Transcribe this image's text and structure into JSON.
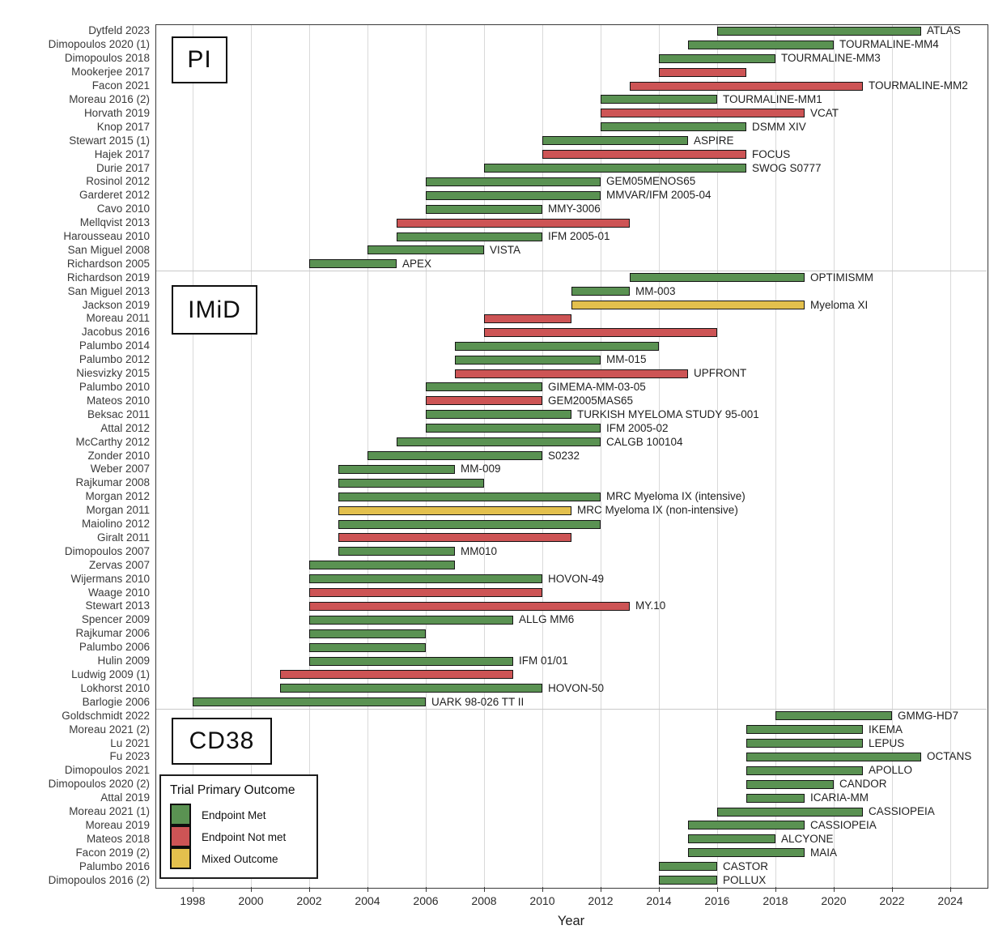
{
  "chart_data": {
    "type": "bar",
    "variant": "gantt-timeline",
    "xlabel": "Year",
    "x_ticks": [
      1998,
      2000,
      2002,
      2004,
      2006,
      2008,
      2010,
      2012,
      2014,
      2016,
      2018,
      2020,
      2022,
      2024
    ],
    "x_range": [
      1996.7,
      2025.3
    ],
    "grid": "vertical-on",
    "legend": {
      "title": "Trial Primary Outcome",
      "position": "bottom-left-inside",
      "items": [
        {
          "key": "met",
          "label": "Endpoint Met",
          "color": "#5A9252"
        },
        {
          "key": "not_met",
          "label": "Endpoint Not met",
          "color": "#CD5455"
        },
        {
          "key": "mixed",
          "label": "Mixed Outcome",
          "color": "#E3C04D"
        }
      ]
    },
    "outcome_colors": {
      "met": "#5A9252",
      "not_met": "#CD5455",
      "mixed": "#E3C04D"
    },
    "sections": [
      {
        "label": "PI",
        "rows": [
          {
            "study": "Dytfeld 2023",
            "trial": "ATLAS",
            "start": 2016,
            "end": 2023,
            "outcome": "met"
          },
          {
            "study": "Dimopoulos 2020 (1)",
            "trial": "TOURMALINE-MM4",
            "start": 2015,
            "end": 2020,
            "outcome": "met"
          },
          {
            "study": "Dimopoulos 2018",
            "trial": "TOURMALINE-MM3",
            "start": 2014,
            "end": 2018,
            "outcome": "met"
          },
          {
            "study": "Mookerjee 2017",
            "trial": "",
            "start": 2014,
            "end": 2017,
            "outcome": "not_met"
          },
          {
            "study": "Facon 2021",
            "trial": "TOURMALINE-MM2",
            "start": 2013,
            "end": 2021,
            "outcome": "not_met"
          },
          {
            "study": "Moreau 2016 (2)",
            "trial": "TOURMALINE-MM1",
            "start": 2012,
            "end": 2016,
            "outcome": "met"
          },
          {
            "study": "Horvath 2019",
            "trial": "VCAT",
            "start": 2012,
            "end": 2019,
            "outcome": "not_met"
          },
          {
            "study": "Knop 2017",
            "trial": "DSMM XIV",
            "start": 2012,
            "end": 2017,
            "outcome": "met"
          },
          {
            "study": "Stewart 2015 (1)",
            "trial": "ASPIRE",
            "start": 2010,
            "end": 2015,
            "outcome": "met"
          },
          {
            "study": "Hajek 2017",
            "trial": "FOCUS",
            "start": 2010,
            "end": 2017,
            "outcome": "not_met"
          },
          {
            "study": "Durie 2017",
            "trial": "SWOG S0777",
            "start": 2008,
            "end": 2017,
            "outcome": "met"
          },
          {
            "study": "Rosinol 2012",
            "trial": "GEM05MENOS65",
            "start": 2006,
            "end": 2012,
            "outcome": "met"
          },
          {
            "study": "Garderet 2012",
            "trial": "MMVAR/IFM 2005-04",
            "start": 2006,
            "end": 2012,
            "outcome": "met"
          },
          {
            "study": "Cavo 2010",
            "trial": "MMY-3006",
            "start": 2006,
            "end": 2010,
            "outcome": "met"
          },
          {
            "study": "Mellqvist 2013",
            "trial": "",
            "start": 2005,
            "end": 2013,
            "outcome": "not_met"
          },
          {
            "study": "Harousseau 2010",
            "trial": "IFM 2005-01",
            "start": 2005,
            "end": 2010,
            "outcome": "met"
          },
          {
            "study": "San Miguel 2008",
            "trial": "VISTA",
            "start": 2004,
            "end": 2008,
            "outcome": "met"
          },
          {
            "study": "Richardson 2005",
            "trial": "APEX",
            "start": 2002,
            "end": 2005,
            "outcome": "met"
          }
        ]
      },
      {
        "label": "IMiD",
        "rows": [
          {
            "study": "Richardson 2019",
            "trial": "OPTIMISMM",
            "start": 2013,
            "end": 2019,
            "outcome": "met"
          },
          {
            "study": "San Miguel 2013",
            "trial": "MM-003",
            "start": 2011,
            "end": 2013,
            "outcome": "met"
          },
          {
            "study": "Jackson 2019",
            "trial": "Myeloma XI",
            "start": 2011,
            "end": 2019,
            "outcome": "mixed"
          },
          {
            "study": "Moreau 2011",
            "trial": "",
            "start": 2008,
            "end": 2011,
            "outcome": "not_met"
          },
          {
            "study": "Jacobus 2016",
            "trial": "",
            "start": 2008,
            "end": 2016,
            "outcome": "not_met"
          },
          {
            "study": "Palumbo 2014",
            "trial": "",
            "start": 2007,
            "end": 2014,
            "outcome": "met"
          },
          {
            "study": "Palumbo 2012",
            "trial": "MM-015",
            "start": 2007,
            "end": 2012,
            "outcome": "met"
          },
          {
            "study": "Niesvizky 2015",
            "trial": "UPFRONT",
            "start": 2007,
            "end": 2015,
            "outcome": "not_met"
          },
          {
            "study": "Palumbo 2010",
            "trial": "GIMEMA-MM-03-05",
            "start": 2006,
            "end": 2010,
            "outcome": "met"
          },
          {
            "study": "Mateos 2010",
            "trial": "GEM2005MAS65",
            "start": 2006,
            "end": 2010,
            "outcome": "not_met"
          },
          {
            "study": "Beksac 2011",
            "trial": "TURKISH MYELOMA STUDY 95-001",
            "start": 2006,
            "end": 2011,
            "outcome": "met"
          },
          {
            "study": "Attal 2012",
            "trial": "IFM 2005-02",
            "start": 2006,
            "end": 2012,
            "outcome": "met"
          },
          {
            "study": "McCarthy 2012",
            "trial": "CALGB 100104",
            "start": 2005,
            "end": 2012,
            "outcome": "met"
          },
          {
            "study": "Zonder 2010",
            "trial": "S0232",
            "start": 2004,
            "end": 2010,
            "outcome": "met"
          },
          {
            "study": "Weber 2007",
            "trial": "MM-009",
            "start": 2003,
            "end": 2007,
            "outcome": "met"
          },
          {
            "study": "Rajkumar 2008",
            "trial": "",
            "start": 2003,
            "end": 2008,
            "outcome": "met"
          },
          {
            "study": "Morgan 2012",
            "trial": "MRC Myeloma IX (intensive)",
            "start": 2003,
            "end": 2012,
            "outcome": "met"
          },
          {
            "study": "Morgan 2011",
            "trial": "MRC Myeloma IX (non-intensive)",
            "start": 2003,
            "end": 2011,
            "outcome": "mixed"
          },
          {
            "study": "Maiolino 2012",
            "trial": "",
            "start": 2003,
            "end": 2012,
            "outcome": "met"
          },
          {
            "study": "Giralt 2011",
            "trial": "",
            "start": 2003,
            "end": 2011,
            "outcome": "not_met"
          },
          {
            "study": "Dimopoulos 2007",
            "trial": "MM010",
            "start": 2003,
            "end": 2007,
            "outcome": "met"
          },
          {
            "study": "Zervas 2007",
            "trial": "",
            "start": 2002,
            "end": 2007,
            "outcome": "met"
          },
          {
            "study": "Wijermans 2010",
            "trial": "HOVON-49",
            "start": 2002,
            "end": 2010,
            "outcome": "met"
          },
          {
            "study": "Waage 2010",
            "trial": "",
            "start": 2002,
            "end": 2010,
            "outcome": "not_met"
          },
          {
            "study": "Stewart 2013",
            "trial": "MY.10",
            "start": 2002,
            "end": 2013,
            "outcome": "not_met"
          },
          {
            "study": "Spencer 2009",
            "trial": "ALLG MM6",
            "start": 2002,
            "end": 2009,
            "outcome": "met"
          },
          {
            "study": "Rajkumar 2006",
            "trial": "",
            "start": 2002,
            "end": 2006,
            "outcome": "met"
          },
          {
            "study": "Palumbo 2006",
            "trial": "",
            "start": 2002,
            "end": 2006,
            "outcome": "met"
          },
          {
            "study": "Hulin 2009",
            "trial": "IFM 01/01",
            "start": 2002,
            "end": 2009,
            "outcome": "met"
          },
          {
            "study": "Ludwig 2009 (1)",
            "trial": "",
            "start": 2001,
            "end": 2009,
            "outcome": "not_met"
          },
          {
            "study": "Lokhorst 2010",
            "trial": "HOVON-50",
            "start": 2001,
            "end": 2010,
            "outcome": "met"
          },
          {
            "study": "Barlogie 2006",
            "trial": "UARK 98-026 TT II",
            "start": 1998,
            "end": 2006,
            "outcome": "met"
          }
        ]
      },
      {
        "label": "CD38",
        "rows": [
          {
            "study": "Goldschmidt 2022",
            "trial": "GMMG-HD7",
            "start": 2018,
            "end": 2022,
            "outcome": "met"
          },
          {
            "study": "Moreau 2021 (2)",
            "trial": "IKEMA",
            "start": 2017,
            "end": 2021,
            "outcome": "met"
          },
          {
            "study": "Lu 2021",
            "trial": "LEPUS",
            "start": 2017,
            "end": 2021,
            "outcome": "met"
          },
          {
            "study": "Fu 2023",
            "trial": "OCTANS",
            "start": 2017,
            "end": 2023,
            "outcome": "met"
          },
          {
            "study": "Dimopoulos 2021",
            "trial": "APOLLO",
            "start": 2017,
            "end": 2021,
            "outcome": "met"
          },
          {
            "study": "Dimopoulos 2020 (2)",
            "trial": "CANDOR",
            "start": 2017,
            "end": 2020,
            "outcome": "met"
          },
          {
            "study": "Attal 2019",
            "trial": "ICARIA-MM",
            "start": 2017,
            "end": 2019,
            "outcome": "met"
          },
          {
            "study": "Moreau 2021 (1)",
            "trial": "CASSIOPEIA",
            "start": 2016,
            "end": 2021,
            "outcome": "met"
          },
          {
            "study": "Moreau 2019",
            "trial": "CASSIOPEIA",
            "start": 2015,
            "end": 2019,
            "outcome": "met"
          },
          {
            "study": "Mateos 2018",
            "trial": "ALCYONE",
            "start": 2015,
            "end": 2018,
            "outcome": "met"
          },
          {
            "study": "Facon 2019 (2)",
            "trial": "MAIA",
            "start": 2015,
            "end": 2019,
            "outcome": "met"
          },
          {
            "study": "Palumbo 2016",
            "trial": "CASTOR",
            "start": 2014,
            "end": 2016,
            "outcome": "met"
          },
          {
            "study": "Dimopoulos 2016 (2)",
            "trial": "POLLUX",
            "start": 2014,
            "end": 2016,
            "outcome": "met"
          }
        ]
      }
    ]
  }
}
